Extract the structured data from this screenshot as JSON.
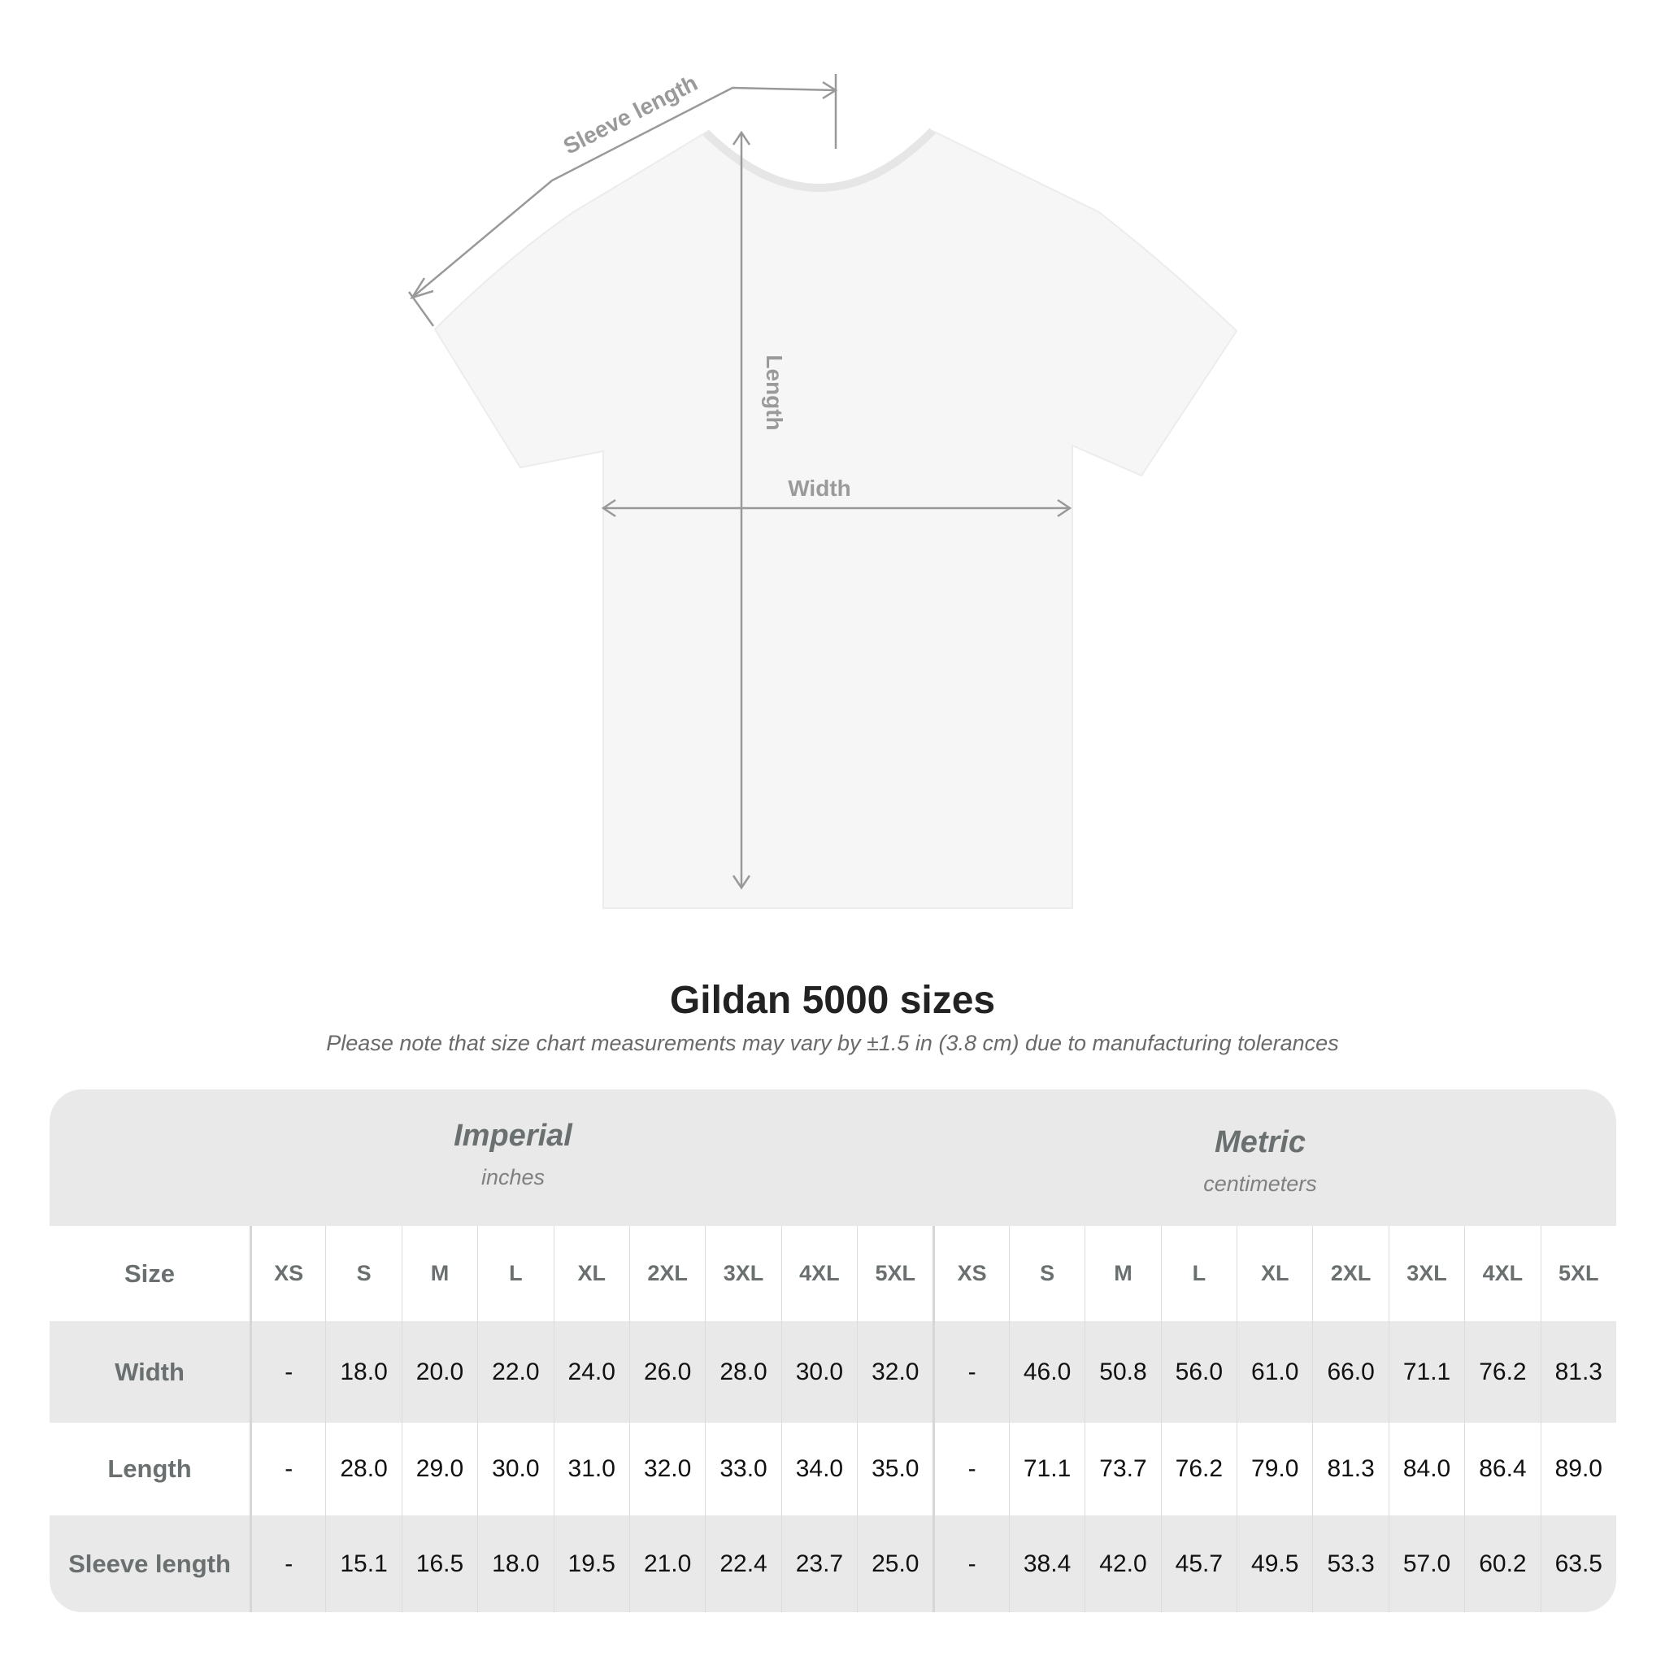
{
  "diagram": {
    "sleeve_label": "Sleeve length",
    "length_label": "Length",
    "width_label": "Width"
  },
  "title": "Gildan 5000 sizes",
  "subtitle": "Please note that size chart measurements may vary by ±1.5 in (3.8 cm) due to manufacturing tolerances",
  "table": {
    "imperial": {
      "name": "Imperial",
      "unit": "inches"
    },
    "metric": {
      "name": "Metric",
      "unit": "centimeters"
    },
    "size_label": "Size",
    "sizes": [
      "XS",
      "S",
      "M",
      "L",
      "XL",
      "2XL",
      "3XL",
      "4XL",
      "5XL",
      "XS",
      "S",
      "M",
      "L",
      "XL",
      "2XL",
      "3XL",
      "4XL",
      "5XL"
    ],
    "rows": [
      {
        "label": "Width",
        "values": [
          "-",
          "18.0",
          "20.0",
          "22.0",
          "24.0",
          "26.0",
          "28.0",
          "30.0",
          "32.0",
          "-",
          "46.0",
          "50.8",
          "56.0",
          "61.0",
          "66.0",
          "71.1",
          "76.2",
          "81.3"
        ]
      },
      {
        "label": "Length",
        "values": [
          "-",
          "28.0",
          "29.0",
          "30.0",
          "31.0",
          "32.0",
          "33.0",
          "34.0",
          "35.0",
          "-",
          "71.1",
          "73.7",
          "76.2",
          "79.0",
          "81.3",
          "84.0",
          "86.4",
          "89.0"
        ]
      },
      {
        "label": "Sleeve length",
        "values": [
          "-",
          "15.1",
          "16.5",
          "18.0",
          "19.5",
          "21.0",
          "22.4",
          "23.7",
          "25.0",
          "-",
          "38.4",
          "42.0",
          "45.7",
          "49.5",
          "53.3",
          "57.0",
          "60.2",
          "63.5"
        ]
      }
    ]
  }
}
